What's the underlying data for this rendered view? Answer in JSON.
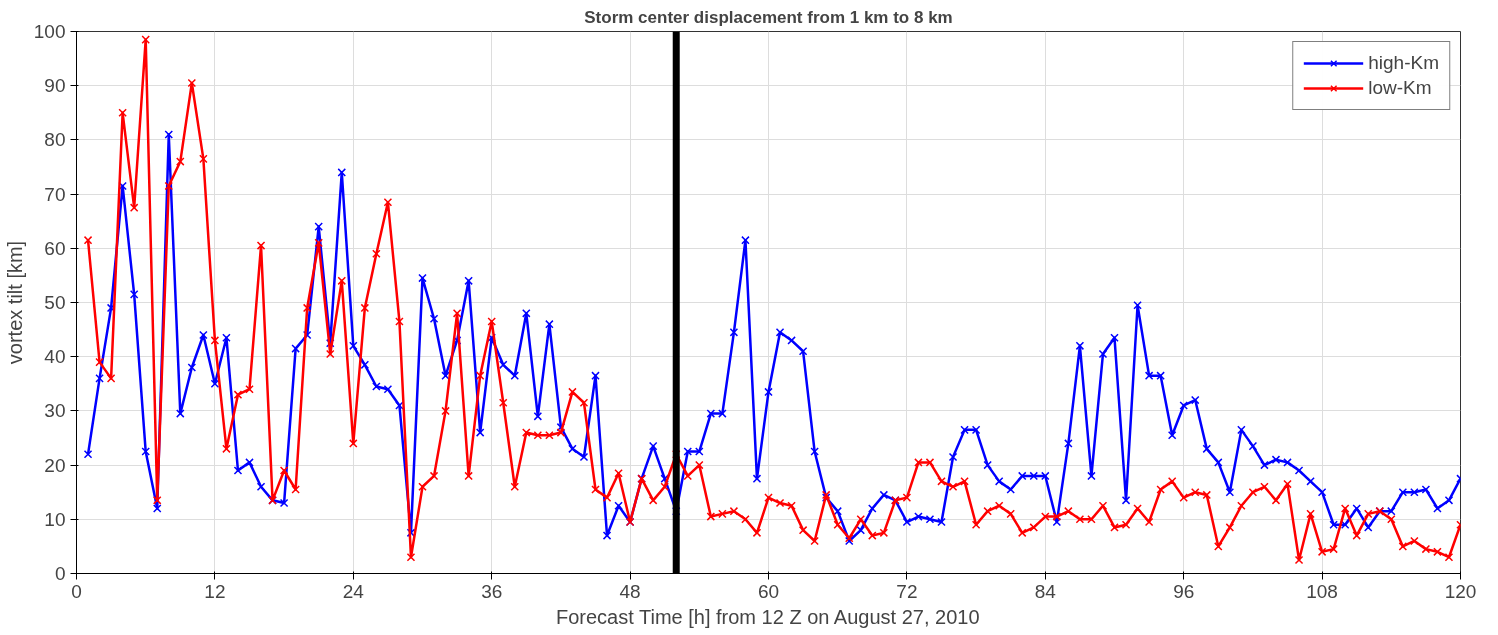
{
  "chart_data": {
    "type": "line",
    "title": "Storm center displacement from 1 km to 8 km",
    "xlabel": "Forecast Time [h] from 12 Z on August 27, 2010",
    "ylabel": "vortex tilt [km]",
    "x": [
      1,
      2,
      3,
      4,
      5,
      6,
      7,
      8,
      9,
      10,
      11,
      12,
      13,
      14,
      15,
      16,
      17,
      18,
      19,
      20,
      21,
      22,
      23,
      24,
      25,
      26,
      27,
      28,
      29,
      30,
      31,
      32,
      33,
      34,
      35,
      36,
      37,
      38,
      39,
      40,
      41,
      42,
      43,
      44,
      45,
      46,
      47,
      48,
      49,
      50,
      51,
      52,
      53,
      54,
      55,
      56,
      57,
      58,
      59,
      60,
      61,
      62,
      63,
      64,
      65,
      66,
      67,
      68,
      69,
      70,
      71,
      72,
      73,
      74,
      75,
      76,
      77,
      78,
      79,
      80,
      81,
      82,
      83,
      84,
      85,
      86,
      87,
      88,
      89,
      90,
      91,
      92,
      93,
      94,
      95,
      96,
      97,
      98,
      99,
      100,
      101,
      102,
      103,
      104,
      105,
      106,
      107,
      108,
      109,
      110,
      111,
      112,
      113,
      114,
      115,
      116,
      117,
      118,
      119,
      120
    ],
    "series": [
      {
        "name": "high-Km",
        "color": "#0000ff",
        "values": [
          22,
          36,
          49,
          71.5,
          51.5,
          22.5,
          12,
          81,
          29.5,
          38,
          44,
          35,
          43.5,
          19,
          20.5,
          16,
          13.5,
          13,
          41.5,
          44,
          64,
          42.5,
          74,
          42,
          38.5,
          34.5,
          34,
          31,
          7.5,
          54.5,
          47,
          36.5,
          43,
          54,
          26,
          43.5,
          38.5,
          36.5,
          48,
          29,
          46,
          27,
          23,
          21.5,
          36.5,
          7,
          12.5,
          9.5,
          17.5,
          23.5,
          17.5,
          11.5,
          22.5,
          22.5,
          29.5,
          29.5,
          44.5,
          61.5,
          17.5,
          33.5,
          44.5,
          43,
          41,
          22.5,
          14,
          11.5,
          6,
          8,
          12,
          14.5,
          13.5,
          9.5,
          10.5,
          10,
          9.5,
          21.5,
          26.5,
          26.5,
          20,
          17,
          15.5,
          18,
          18,
          18,
          9.5,
          24,
          42,
          18,
          40.5,
          43.5,
          13.5,
          49.5,
          36.5,
          36.5,
          25.5,
          31,
          32,
          23,
          20.5,
          15,
          26.5,
          23.5,
          20,
          21,
          20.5,
          19,
          17,
          15,
          9,
          9,
          12,
          8.5,
          11.5,
          11.5,
          15,
          15,
          15.5,
          12,
          13.5,
          17.5
        ]
      },
      {
        "name": "low-Km",
        "color": "#ff0000",
        "values": [
          61.5,
          39,
          36,
          85,
          67.5,
          98.5,
          13.5,
          71.5,
          76,
          90.5,
          76.5,
          43,
          23,
          33,
          34,
          60.5,
          13.5,
          19,
          15.5,
          49,
          61,
          40.5,
          54,
          24,
          49,
          59,
          68.5,
          46.5,
          3,
          16,
          18,
          30,
          48,
          18,
          36.5,
          46.5,
          31.5,
          16,
          26,
          25.5,
          25.5,
          26,
          33.5,
          31.5,
          15.5,
          14,
          18.5,
          9.5,
          17.5,
          13.5,
          16,
          22,
          18,
          20,
          10.5,
          11,
          11.5,
          10,
          7.5,
          14,
          13,
          12.5,
          8,
          6,
          14.5,
          9,
          6.5,
          10,
          7,
          7.5,
          13.5,
          14,
          20.5,
          20.5,
          17,
          16,
          17,
          9,
          11.5,
          12.5,
          11,
          7.5,
          8.5,
          10.5,
          10.5,
          11.5,
          10,
          10,
          12.5,
          8.5,
          9,
          12,
          9.5,
          15.5,
          17,
          14,
          15,
          14.5,
          5,
          8.5,
          12.5,
          15,
          16,
          13.5,
          16.5,
          2.5,
          11,
          4,
          4.5,
          12,
          7,
          11,
          11.5,
          10,
          5,
          6,
          4.5,
          4,
          3,
          9
        ]
      }
    ],
    "xlim": [
      0,
      120
    ],
    "xticks": [
      0,
      12,
      24,
      36,
      48,
      60,
      72,
      84,
      96,
      108,
      120
    ],
    "ylim": [
      0,
      100
    ],
    "yticks": [
      0,
      10,
      20,
      30,
      40,
      50,
      60,
      70,
      80,
      90,
      100
    ],
    "ref_lines": [
      {
        "axis": "x",
        "value": 52,
        "color": "#000000"
      }
    ],
    "grid": true,
    "legend": "top right",
    "marker": "cross",
    "line_style": "solid"
  }
}
